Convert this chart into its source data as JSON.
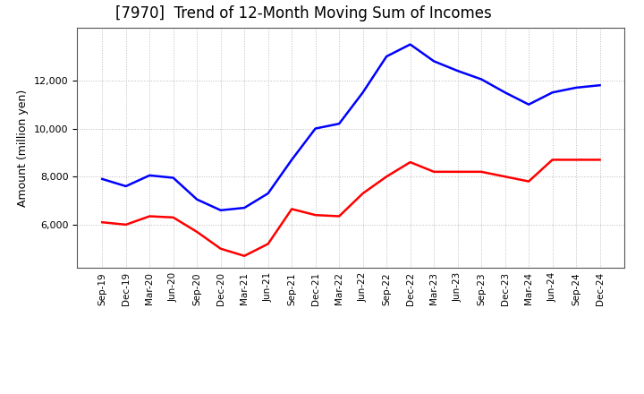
{
  "title": "[7970]  Trend of 12-Month Moving Sum of Incomes",
  "ylabel": "Amount (million yen)",
  "x_labels": [
    "Sep-19",
    "Dec-19",
    "Mar-20",
    "Jun-20",
    "Sep-20",
    "Dec-20",
    "Mar-21",
    "Jun-21",
    "Sep-21",
    "Dec-21",
    "Mar-22",
    "Jun-22",
    "Sep-22",
    "Dec-22",
    "Mar-23",
    "Jun-23",
    "Sep-23",
    "Dec-23",
    "Mar-24",
    "Jun-24",
    "Sep-24",
    "Dec-24"
  ],
  "ordinary_income": [
    7900,
    7600,
    8050,
    7950,
    7050,
    6600,
    6700,
    7300,
    8700,
    10000,
    10200,
    11500,
    13000,
    13500,
    12800,
    12400,
    12050,
    11500,
    11000,
    11500,
    11700,
    11800
  ],
  "net_income": [
    6100,
    6000,
    6350,
    6300,
    5700,
    5000,
    4700,
    5200,
    6650,
    6400,
    6350,
    7300,
    8000,
    8600,
    8200,
    8200,
    8200,
    8000,
    7800,
    8700,
    8700,
    8700
  ],
  "ordinary_color": "#0000ff",
  "net_color": "#ff0000",
  "ylim_min": 4200,
  "ylim_max": 14200,
  "yticks": [
    6000,
    8000,
    10000,
    12000
  ],
  "background_color": "#ffffff",
  "grid_color": "#bbbbbb",
  "title_fontsize": 12
}
